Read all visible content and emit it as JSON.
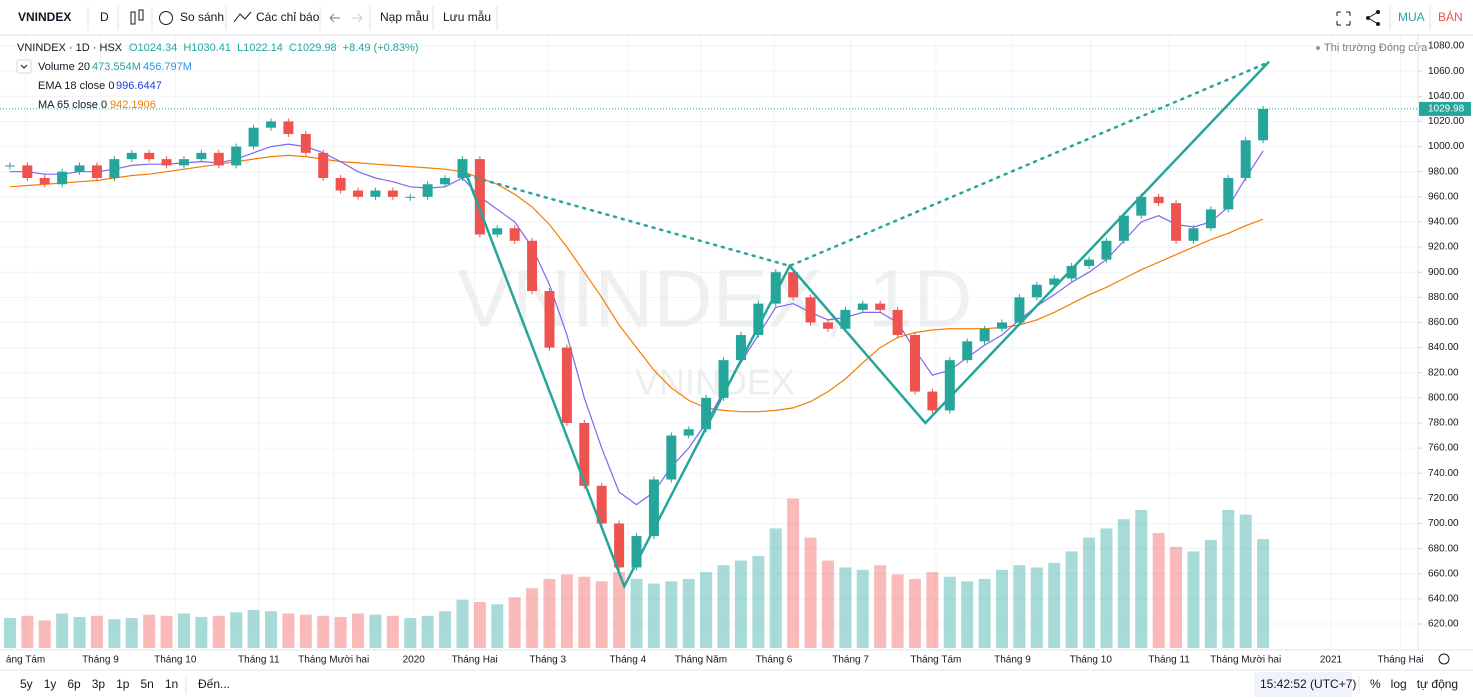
{
  "toolbar": {
    "symbol": "VNINDEX",
    "interval": "D",
    "compare": "So sánh",
    "indicators": "Các chỉ báo",
    "load": "Nạp mẫu",
    "save": "Lưu mẫu",
    "buy": "MUA",
    "sell": "BÁN"
  },
  "legend": {
    "ohlc": [
      "O1024.34",
      "H1030.41",
      "L1022.14",
      "C1029.98",
      "+8.49 (+0.83%)"
    ],
    "volume_values": [
      "473.554M",
      "456.797M"
    ],
    "ema_value": "996.6447",
    "ma_value": "942.1906"
  },
  "market_status": "Thị trường Đóng cửa",
  "watermark": "VNINDEX, 1D",
  "watermark_small": "VNINDEX",
  "chart_data": {
    "type": "candlestick",
    "xlim": [
      -0.57,
      80.9
    ],
    "xticks": [
      {
        "value": 0.9,
        "label": "áng Tám"
      },
      {
        "value": 5.2,
        "label": "Tháng 9"
      },
      {
        "value": 9.5,
        "label": "Tháng 10"
      },
      {
        "value": 14.3,
        "label": "Tháng 11"
      },
      {
        "value": 18.6,
        "label": "Tháng Mười hai"
      },
      {
        "value": 23.2,
        "label": "2020"
      },
      {
        "value": 26.7,
        "label": "Tháng Hai"
      },
      {
        "value": 30.9,
        "label": "Tháng 3"
      },
      {
        "value": 35.5,
        "label": "Tháng 4"
      },
      {
        "value": 39.7,
        "label": "Tháng Năm"
      },
      {
        "value": 43.9,
        "label": "Tháng 6"
      },
      {
        "value": 48.3,
        "label": "Tháng 7"
      },
      {
        "value": 53.2,
        "label": "Tháng Tám"
      },
      {
        "value": 57.6,
        "label": "Tháng 9"
      },
      {
        "value": 62.1,
        "label": "Tháng 10"
      },
      {
        "value": 66.6,
        "label": "Tháng 11"
      },
      {
        "value": 71,
        "label": "Tháng Mười hai"
      },
      {
        "value": 75.9,
        "label": "2021"
      },
      {
        "value": 79.9,
        "label": "Tháng Hai"
      }
    ],
    "ylim": [
      599.3,
      1088.8
    ],
    "yticks": [
      {
        "value": 1080,
        "label": "1080.00"
      },
      {
        "value": 1060,
        "label": "1060.00"
      },
      {
        "value": 1040,
        "label": "1040.00"
      },
      {
        "value": 1020,
        "label": "1020.00"
      },
      {
        "value": 1000,
        "label": "1000.00"
      },
      {
        "value": 980,
        "label": "980.00"
      },
      {
        "value": 960,
        "label": "960.00"
      },
      {
        "value": 940,
        "label": "940.00"
      },
      {
        "value": 920,
        "label": "920.00"
      },
      {
        "value": 900,
        "label": "900.00"
      },
      {
        "value": 880,
        "label": "880.00"
      },
      {
        "value": 860,
        "label": "860.00"
      },
      {
        "value": 840,
        "label": "840.00"
      },
      {
        "value": 820,
        "label": "820.00"
      },
      {
        "value": 800,
        "label": "800.00"
      },
      {
        "value": 780,
        "label": "780.00"
      },
      {
        "value": 760,
        "label": "760.00"
      },
      {
        "value": 740,
        "label": "740.00"
      },
      {
        "value": 720,
        "label": "720.00"
      },
      {
        "value": 700,
        "label": "700.00"
      },
      {
        "value": 680,
        "label": "680.00"
      },
      {
        "value": 660,
        "label": "660.00"
      },
      {
        "value": 640,
        "label": "640.00"
      },
      {
        "value": 620,
        "label": "620.00"
      }
    ],
    "grid": true,
    "last_price": {
      "value": 1029.98,
      "label": "1029.98"
    },
    "up_color": "#26a69a",
    "down_color": "#ef5350",
    "series": [
      {
        "name": "VNINDEX · 1D · HSX",
        "values": [
          985,
          975,
          970,
          980,
          985,
          975,
          990,
          995,
          990,
          985,
          990,
          995,
          985,
          1000,
          1015,
          1020,
          1010,
          995,
          975,
          965,
          960,
          965,
          960,
          960,
          970,
          975,
          990,
          930,
          935,
          925,
          885,
          840,
          780,
          730,
          700,
          665,
          690,
          735,
          770,
          775,
          800,
          830,
          850,
          875,
          900,
          880,
          860,
          855,
          870,
          875,
          870,
          850,
          805,
          790,
          830,
          845,
          855,
          860,
          880,
          890,
          895,
          905,
          910,
          925,
          945,
          960,
          955,
          925,
          935,
          950,
          975,
          1005,
          1029.98
        ]
      },
      {
        "name": "EMA 18 close 0",
        "color": "#7b68ee",
        "values": [
          980,
          980,
          978,
          978,
          980,
          980,
          982,
          985,
          986,
          986,
          987,
          988,
          987,
          990,
          995,
          1000,
          1002,
          1000,
          995,
          988,
          980,
          975,
          972,
          968,
          967,
          968,
          975,
          960,
          950,
          940,
          920,
          890,
          850,
          800,
          760,
          725,
          715,
          725,
          745,
          760,
          780,
          805,
          828,
          850,
          872,
          875,
          868,
          862,
          864,
          868,
          868,
          860,
          838,
          818,
          822,
          832,
          842,
          850,
          862,
          873,
          882,
          892,
          900,
          910,
          925,
          940,
          945,
          938,
          936,
          940,
          952,
          975,
          996.6447
        ]
      },
      {
        "name": "MA 65 close 0",
        "color": "#f57c00",
        "values": [
          968,
          969,
          970,
          971,
          972,
          973,
          975,
          977,
          978,
          980,
          982,
          984,
          986,
          988,
          990,
          992,
          993,
          992,
          990,
          988,
          987,
          986,
          985,
          984,
          983,
          982,
          980,
          975,
          970,
          962,
          952,
          938,
          920,
          900,
          880,
          858,
          840,
          822,
          808,
          798,
          792,
          790,
          789,
          789,
          790,
          792,
          797,
          805,
          815,
          828,
          840,
          848,
          852,
          854,
          855,
          855,
          855,
          856,
          858,
          862,
          868,
          875,
          882,
          888,
          895,
          902,
          908,
          914,
          920,
          926,
          931,
          937,
          942.1906
        ]
      }
    ],
    "volume": {
      "name": "Volume 20",
      "values": [
        130,
        140,
        120,
        150,
        135,
        140,
        125,
        130,
        145,
        140,
        150,
        135,
        140,
        155,
        165,
        160,
        150,
        145,
        140,
        135,
        150,
        145,
        140,
        130,
        140,
        160,
        210,
        200,
        190,
        220,
        260,
        300,
        320,
        310,
        290,
        330,
        300,
        280,
        290,
        300,
        330,
        360,
        380,
        400,
        520,
        650,
        480,
        380,
        350,
        340,
        360,
        320,
        300,
        330,
        310,
        290,
        300,
        340,
        360,
        350,
        370,
        420,
        480,
        520,
        560,
        600,
        500,
        440,
        420,
        470,
        600,
        580,
        473.554
      ]
    },
    "drawings": [
      {
        "style": "solid",
        "color": "#26a69a",
        "x": [
          26.3,
          35.3,
          44.8,
          52.6,
          72.3
        ],
        "y": [
          975,
          650,
          905,
          780,
          1067
        ]
      },
      {
        "style": "dotted",
        "color": "#26a69a",
        "x": [
          26.3,
          44.8,
          72.3
        ],
        "y": [
          977,
          905,
          1067
        ]
      }
    ]
  },
  "bottom": {
    "ranges": [
      "5y",
      "1y",
      "6p",
      "3p",
      "1p",
      "5n",
      "1n"
    ],
    "goto": "Đến...",
    "time": "15:42:52 (UTC+7)",
    "options": [
      "%",
      "log",
      "tự động"
    ]
  }
}
